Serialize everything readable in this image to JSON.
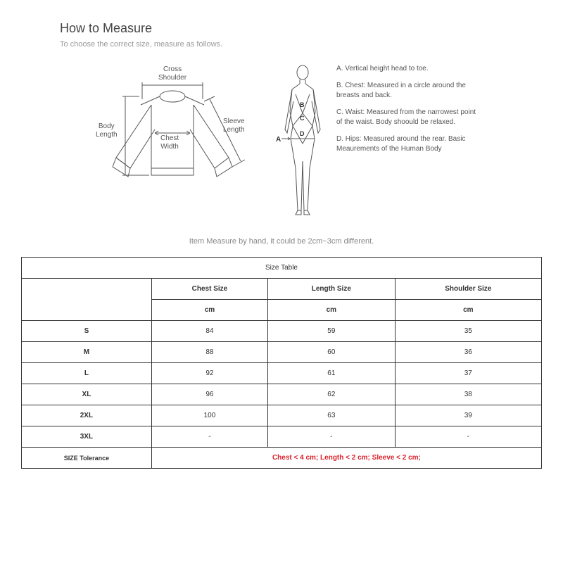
{
  "header": {
    "title": "How to Measure",
    "subtitle": "To choose the correct size, measure as follows."
  },
  "shirt_labels": {
    "cross_shoulder": "Cross\nShoulder",
    "body_length": "Body\nLength",
    "chest_width": "Chest\nWidth",
    "sleeve_length": "Sleeve\nLength"
  },
  "body_diagram": {
    "label_A": "A",
    "label_B": "B",
    "label_C": "C",
    "label_D": "D",
    "desc_A": "A. Vertical height head to toe.",
    "desc_B": "B. Chest: Measured in a circle around the breasts and back.",
    "desc_C": "C. Waist: Measured from the narrowest point of the waist. Body shoould be relaxed.",
    "desc_D": "D. Hips: Measured around the rear. Basic Meaurements of the Human Body"
  },
  "note": "Item Measure by hand, it could be 2cm~3cm different.",
  "table": {
    "title": "Size Table",
    "columns": [
      "Chest Size",
      "Length Size",
      "Shoulder Size"
    ],
    "unit": "cm",
    "rows": [
      {
        "size": "S",
        "vals": [
          "84",
          "59",
          "35"
        ]
      },
      {
        "size": "M",
        "vals": [
          "88",
          "60",
          "36"
        ]
      },
      {
        "size": "L",
        "vals": [
          "92",
          "61",
          "37"
        ]
      },
      {
        "size": "XL",
        "vals": [
          "96",
          "62",
          "38"
        ]
      },
      {
        "size": "2XL",
        "vals": [
          "100",
          "63",
          "39"
        ]
      },
      {
        "size": "3XL",
        "vals": [
          "-",
          "-",
          "-"
        ]
      }
    ],
    "tolerance_label": "SIZE Tolerance",
    "tolerance_value": "Chest < 4 cm;  Length < 2 cm;  Sleeve < 2 cm;"
  },
  "colors": {
    "text": "#333333",
    "muted": "#999999",
    "border": "#333333",
    "accent": "#d9232d",
    "stroke": "#555555"
  }
}
